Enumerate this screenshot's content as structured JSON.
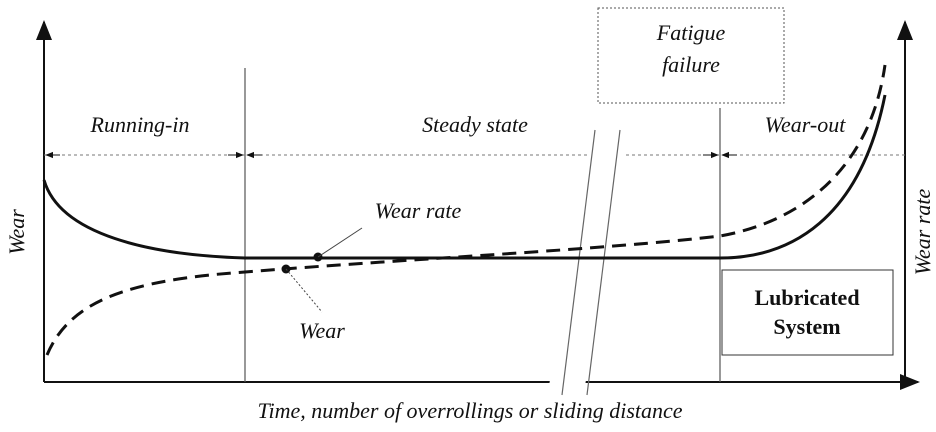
{
  "diagram": {
    "phases": [
      "Running-in",
      "Steady state",
      "Wear-out"
    ],
    "fatigue_box": [
      "Fatigue",
      "failure"
    ],
    "curve_labels": {
      "wear_rate": "Wear rate",
      "wear": "Wear"
    },
    "system_box": [
      "Lubricated",
      "System"
    ],
    "axes": {
      "left": "Wear",
      "right": "Wear rate",
      "bottom": "Time, number of overrollings or sliding distance"
    }
  }
}
